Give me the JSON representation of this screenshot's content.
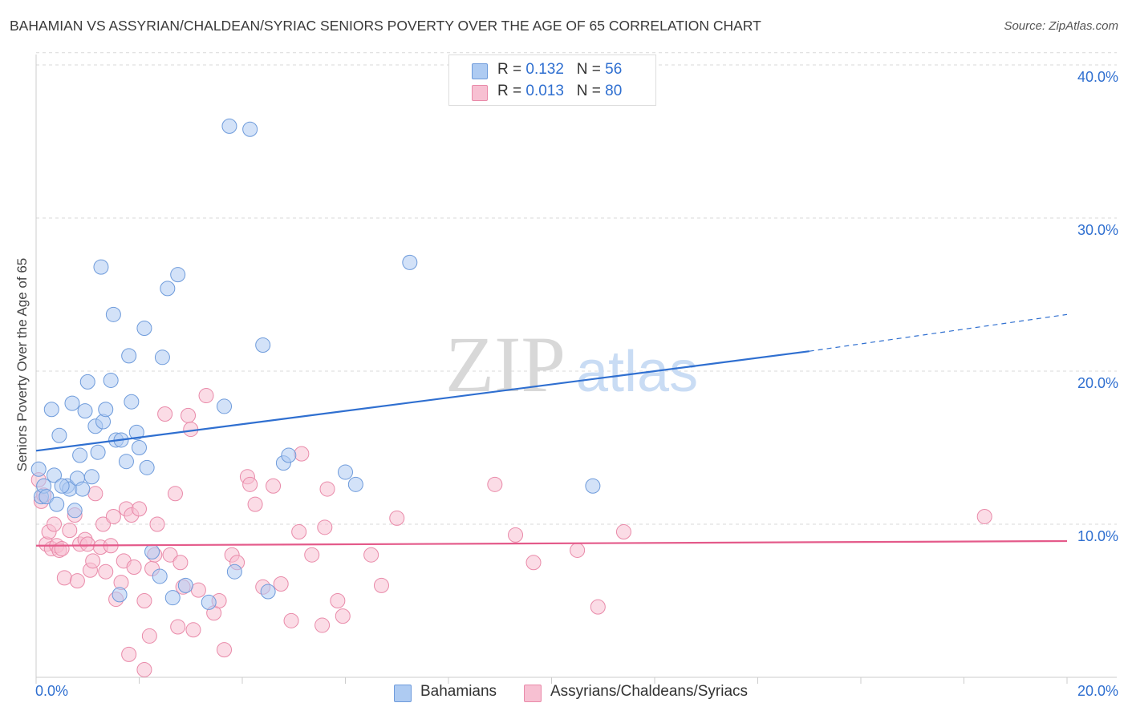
{
  "title": "BAHAMIAN VS ASSYRIAN/CHALDEAN/SYRIAC SENIORS POVERTY OVER THE AGE OF 65 CORRELATION CHART",
  "source": "Source: ZipAtlas.com",
  "watermark": {
    "zip": "ZIP",
    "atlas": "atlas"
  },
  "legend": {
    "rows": [
      {
        "r_label": "R = ",
        "r_value": "0.132",
        "n_label": "N = ",
        "n_value": "56"
      },
      {
        "r_label": "R = ",
        "r_value": "0.013",
        "n_label": "N = ",
        "n_value": "80"
      }
    ]
  },
  "colors": {
    "blue_fill": "#aecbf2",
    "blue_stroke": "#6e9bdb",
    "blue_line": "#2f6fd0",
    "pink_fill": "#f7c0d2",
    "pink_stroke": "#e98aa9",
    "pink_line": "#e45a8a",
    "grid": "#d9d9d9",
    "tick_text": "#2f6fd0"
  },
  "chart_data": {
    "type": "scatter",
    "title": "BAHAMIAN VS ASSYRIAN/CHALDEAN/SYRIAC SENIORS POVERTY OVER THE AGE OF 65 CORRELATION CHART",
    "xlabel": "",
    "ylabel": "Seniors Poverty Over the Age of 65",
    "xlim": [
      0,
      20
    ],
    "ylim": [
      0,
      40.8
    ],
    "x_tick_labels": [
      "0.0%",
      "20.0%"
    ],
    "y_ticks": [
      10,
      20,
      30,
      40
    ],
    "y_tick_labels": [
      "10.0%",
      "20.0%",
      "30.0%",
      "40.0%"
    ],
    "grid": true,
    "legend_position": "top-center",
    "series": [
      {
        "name": "Bahamians",
        "color": "#6e9bdb",
        "points": [
          [
            0.05,
            13.6
          ],
          [
            0.1,
            11.8
          ],
          [
            0.15,
            12.5
          ],
          [
            0.2,
            11.8
          ],
          [
            0.3,
            17.5
          ],
          [
            0.35,
            13.2
          ],
          [
            0.4,
            11.3
          ],
          [
            0.45,
            15.8
          ],
          [
            0.6,
            12.5
          ],
          [
            0.65,
            12.3
          ],
          [
            0.7,
            17.9
          ],
          [
            0.75,
            10.9
          ],
          [
            0.8,
            13.0
          ],
          [
            0.85,
            14.5
          ],
          [
            0.9,
            12.3
          ],
          [
            0.95,
            17.4
          ],
          [
            1.0,
            19.3
          ],
          [
            1.08,
            13.1
          ],
          [
            1.15,
            16.4
          ],
          [
            1.2,
            14.7
          ],
          [
            1.26,
            26.8
          ],
          [
            1.3,
            16.7
          ],
          [
            1.35,
            17.5
          ],
          [
            1.45,
            19.4
          ],
          [
            1.5,
            23.7
          ],
          [
            1.55,
            15.5
          ],
          [
            1.62,
            5.4
          ],
          [
            1.65,
            15.5
          ],
          [
            1.75,
            14.1
          ],
          [
            1.8,
            21.0
          ],
          [
            1.85,
            18.0
          ],
          [
            1.95,
            16.0
          ],
          [
            2.0,
            15.0
          ],
          [
            2.1,
            22.8
          ],
          [
            2.15,
            13.7
          ],
          [
            2.25,
            8.2
          ],
          [
            2.4,
            6.6
          ],
          [
            2.45,
            20.9
          ],
          [
            2.55,
            25.4
          ],
          [
            2.65,
            5.2
          ],
          [
            2.75,
            26.3
          ],
          [
            2.9,
            6.0
          ],
          [
            3.35,
            4.9
          ],
          [
            3.65,
            17.7
          ],
          [
            3.75,
            36.0
          ],
          [
            3.85,
            6.9
          ],
          [
            4.15,
            35.8
          ],
          [
            4.4,
            21.7
          ],
          [
            4.5,
            5.6
          ],
          [
            4.8,
            14.0
          ],
          [
            4.9,
            14.5
          ],
          [
            6.0,
            13.4
          ],
          [
            6.2,
            12.6
          ],
          [
            7.25,
            27.1
          ],
          [
            10.8,
            12.5
          ],
          [
            0.5,
            12.5
          ]
        ],
        "trend": {
          "x": [
            0,
            15
          ],
          "y": [
            14.8,
            21.3
          ],
          "dashed_to": [
            20,
            23.7
          ]
        },
        "r": 0.132,
        "n": 56
      },
      {
        "name": "Assyrians/Chaldeans/Syriacs",
        "color": "#e98aa9",
        "points": [
          [
            0.05,
            12.9
          ],
          [
            0.1,
            11.5
          ],
          [
            0.15,
            11.9
          ],
          [
            0.2,
            8.7
          ],
          [
            0.25,
            9.5
          ],
          [
            0.3,
            8.4
          ],
          [
            0.35,
            10.0
          ],
          [
            0.4,
            8.6
          ],
          [
            0.45,
            8.3
          ],
          [
            0.5,
            8.4
          ],
          [
            0.55,
            6.5
          ],
          [
            0.65,
            9.6
          ],
          [
            0.75,
            10.6
          ],
          [
            0.8,
            6.3
          ],
          [
            0.85,
            8.7
          ],
          [
            0.95,
            9.0
          ],
          [
            1.0,
            8.7
          ],
          [
            1.05,
            7.0
          ],
          [
            1.1,
            7.6
          ],
          [
            1.15,
            12.0
          ],
          [
            1.25,
            8.5
          ],
          [
            1.3,
            10.0
          ],
          [
            1.35,
            6.9
          ],
          [
            1.45,
            8.6
          ],
          [
            1.5,
            10.5
          ],
          [
            1.55,
            5.1
          ],
          [
            1.65,
            6.2
          ],
          [
            1.7,
            7.6
          ],
          [
            1.75,
            11.0
          ],
          [
            1.8,
            1.5
          ],
          [
            1.85,
            10.6
          ],
          [
            1.9,
            7.2
          ],
          [
            2.0,
            11.0
          ],
          [
            2.1,
            5.0
          ],
          [
            2.2,
            2.7
          ],
          [
            2.25,
            7.1
          ],
          [
            2.3,
            8.0
          ],
          [
            2.35,
            10.0
          ],
          [
            2.5,
            17.2
          ],
          [
            2.6,
            8.0
          ],
          [
            2.7,
            12.0
          ],
          [
            2.75,
            3.3
          ],
          [
            2.8,
            7.5
          ],
          [
            2.85,
            5.9
          ],
          [
            2.95,
            17.1
          ],
          [
            3.0,
            16.2
          ],
          [
            3.05,
            3.1
          ],
          [
            3.15,
            5.7
          ],
          [
            3.3,
            18.4
          ],
          [
            3.45,
            4.2
          ],
          [
            3.55,
            5.0
          ],
          [
            3.65,
            1.8
          ],
          [
            3.8,
            8.0
          ],
          [
            3.9,
            7.5
          ],
          [
            4.1,
            13.1
          ],
          [
            4.15,
            12.6
          ],
          [
            4.25,
            11.3
          ],
          [
            4.4,
            5.9
          ],
          [
            4.6,
            12.5
          ],
          [
            4.75,
            6.1
          ],
          [
            4.95,
            3.7
          ],
          [
            5.1,
            9.5
          ],
          [
            5.15,
            14.6
          ],
          [
            5.35,
            8.0
          ],
          [
            5.55,
            3.4
          ],
          [
            5.6,
            9.8
          ],
          [
            5.65,
            12.3
          ],
          [
            5.85,
            5.0
          ],
          [
            5.95,
            4.0
          ],
          [
            6.5,
            8.0
          ],
          [
            6.7,
            6.0
          ],
          [
            7.0,
            10.4
          ],
          [
            8.9,
            12.6
          ],
          [
            9.3,
            9.3
          ],
          [
            9.65,
            7.5
          ],
          [
            10.5,
            8.3
          ],
          [
            10.9,
            4.6
          ],
          [
            11.4,
            9.5
          ],
          [
            18.4,
            10.5
          ],
          [
            2.1,
            0.5
          ]
        ],
        "trend": {
          "x": [
            0,
            20
          ],
          "y": [
            8.6,
            8.9
          ]
        },
        "r": 0.013,
        "n": 80
      }
    ]
  },
  "bottom_legend": [
    "Bahamians",
    "Assyrians/Chaldeans/Syriacs"
  ]
}
